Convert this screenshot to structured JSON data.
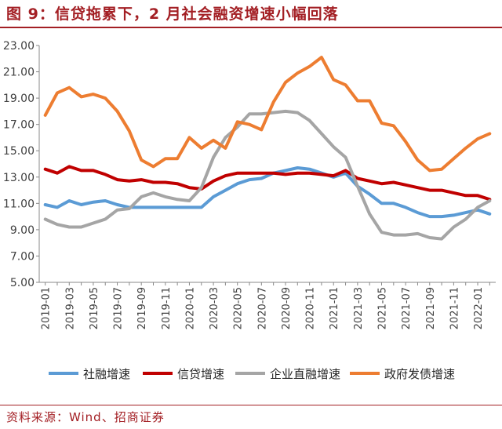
{
  "header": {
    "title": "图 9：信贷拖累下，2 月社会融资增速小幅回落"
  },
  "footer": {
    "source": "资料来源：Wind、招商证券"
  },
  "colors": {
    "社融增速": "#5b9bd5",
    "信贷增速": "#c00000",
    "企业直融增速": "#a5a5a5",
    "政府发债增速": "#ed7d31",
    "accent": "#a31f24"
  },
  "chart_data": {
    "type": "line",
    "title": "",
    "xlabel": "",
    "ylabel": "",
    "ylim": [
      5.0,
      23.0
    ],
    "yticks": [
      "23.00",
      "21.00",
      "19.00",
      "17.00",
      "15.00",
      "13.00",
      "11.00",
      "9.00",
      "7.00",
      "5.00"
    ],
    "ytick_values": [
      23,
      21,
      19,
      17,
      15,
      13,
      11,
      9,
      7,
      5
    ],
    "xticks": [
      "2019-01",
      "2019-03",
      "2019-05",
      "2019-07",
      "2019-09",
      "2019-11",
      "2020-01",
      "2020-03",
      "2020-05",
      "2020-07",
      "2020-09",
      "2020-11",
      "2021-01",
      "2021-03",
      "2021-05",
      "2021-07",
      "2021-09",
      "2021-11",
      "2022-01"
    ],
    "x": [
      "2019-01",
      "2019-02",
      "2019-03",
      "2019-04",
      "2019-05",
      "2019-06",
      "2019-07",
      "2019-08",
      "2019-09",
      "2019-10",
      "2019-11",
      "2019-12",
      "2020-01",
      "2020-02",
      "2020-03",
      "2020-04",
      "2020-05",
      "2020-06",
      "2020-07",
      "2020-08",
      "2020-09",
      "2020-10",
      "2020-11",
      "2020-12",
      "2021-01",
      "2021-02",
      "2021-03",
      "2021-04",
      "2021-05",
      "2021-06",
      "2021-07",
      "2021-08",
      "2021-09",
      "2021-10",
      "2021-11",
      "2021-12",
      "2022-01",
      "2022-02"
    ],
    "grid": false,
    "legend_position": "bottom",
    "series": [
      {
        "name": "社融增速",
        "values": [
          10.9,
          10.7,
          11.2,
          10.9,
          11.1,
          11.2,
          10.9,
          10.7,
          10.7,
          10.7,
          10.7,
          10.7,
          10.7,
          10.7,
          11.5,
          12.0,
          12.5,
          12.8,
          12.9,
          13.3,
          13.5,
          13.7,
          13.6,
          13.3,
          13.0,
          13.3,
          12.3,
          11.7,
          11.0,
          11.0,
          10.7,
          10.3,
          10.0,
          10.0,
          10.1,
          10.3,
          10.5,
          10.2
        ]
      },
      {
        "name": "信贷增速",
        "values": [
          13.6,
          13.3,
          13.8,
          13.5,
          13.5,
          13.2,
          12.8,
          12.7,
          12.8,
          12.6,
          12.6,
          12.5,
          12.2,
          12.1,
          12.7,
          13.1,
          13.3,
          13.3,
          13.3,
          13.3,
          13.2,
          13.3,
          13.3,
          13.2,
          13.1,
          13.5,
          12.9,
          12.7,
          12.5,
          12.6,
          12.4,
          12.2,
          12.0,
          12.0,
          11.8,
          11.6,
          11.6,
          11.3
        ]
      },
      {
        "name": "企业直融增速",
        "values": [
          9.8,
          9.4,
          9.2,
          9.2,
          9.5,
          9.8,
          10.5,
          10.6,
          11.5,
          11.8,
          11.5,
          11.3,
          11.2,
          12.2,
          14.5,
          16.0,
          16.8,
          17.8,
          17.8,
          17.9,
          18.0,
          17.9,
          17.3,
          16.3,
          15.3,
          14.5,
          12.3,
          10.2,
          8.8,
          8.6,
          8.6,
          8.7,
          8.4,
          8.3,
          9.2,
          9.8,
          10.7,
          11.2
        ]
      },
      {
        "name": "政府发债增速",
        "values": [
          17.7,
          19.4,
          19.8,
          19.1,
          19.3,
          19.0,
          18.0,
          16.5,
          14.3,
          13.8,
          14.4,
          14.4,
          16.0,
          15.2,
          15.8,
          15.2,
          17.2,
          17.0,
          16.6,
          18.7,
          20.2,
          20.9,
          21.4,
          22.1,
          20.4,
          20.0,
          18.8,
          18.8,
          17.1,
          16.9,
          15.7,
          14.3,
          13.5,
          13.6,
          14.4,
          15.2,
          15.9,
          16.3
        ]
      }
    ]
  }
}
